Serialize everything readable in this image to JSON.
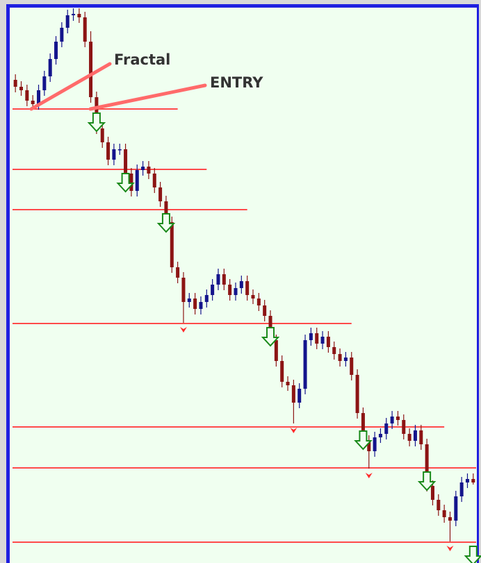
{
  "chart_data": {
    "type": "candlestick",
    "annotations": [
      "Fractal",
      "ENTRY"
    ],
    "up_color": "#14148c",
    "down_color": "#8c1414",
    "level_color": "#ff4a4a",
    "fractal_color": "#ff2a2a",
    "signal_color": "#1a8a1a",
    "ylim": [
      0,
      793
    ],
    "open": [
      690,
      680,
      675,
      660,
      655,
      675,
      695,
      720,
      745,
      765,
      783,
      785,
      780,
      745,
      665,
      620,
      600,
      575,
      590,
      590,
      555,
      530,
      560,
      565,
      555,
      535,
      515,
      485,
      420,
      405,
      370,
      375,
      360,
      370,
      380,
      395,
      410,
      395,
      380,
      390,
      400,
      380,
      375,
      365,
      350,
      315,
      285,
      255,
      250,
      225,
      245,
      315,
      325,
      310,
      320,
      305,
      295,
      285,
      290,
      265,
      210,
      170,
      155,
      175,
      180,
      195,
      205,
      200,
      180,
      170,
      185,
      165,
      105,
      85,
      70,
      60,
      55,
      90,
      110,
      115
    ],
    "high": [
      698,
      688,
      683,
      668,
      683,
      703,
      728,
      753,
      773,
      791,
      793,
      793,
      788,
      760,
      673,
      628,
      608,
      598,
      598,
      598,
      563,
      568,
      573,
      573,
      563,
      543,
      523,
      493,
      428,
      413,
      383,
      383,
      378,
      388,
      403,
      418,
      418,
      403,
      398,
      408,
      408,
      388,
      383,
      373,
      358,
      323,
      293,
      263,
      258,
      253,
      323,
      333,
      333,
      328,
      328,
      313,
      303,
      298,
      298,
      273,
      218,
      178,
      183,
      188,
      203,
      213,
      213,
      208,
      188,
      193,
      193,
      173,
      113,
      93,
      78,
      68,
      98,
      118,
      123,
      123
    ],
    "low": [
      672,
      667,
      652,
      647,
      647,
      667,
      687,
      712,
      737,
      757,
      775,
      772,
      737,
      657,
      612,
      592,
      567,
      567,
      582,
      547,
      522,
      522,
      552,
      547,
      527,
      507,
      477,
      412,
      397,
      340,
      362,
      352,
      352,
      362,
      372,
      387,
      387,
      372,
      372,
      382,
      372,
      367,
      357,
      342,
      307,
      277,
      247,
      242,
      195,
      217,
      237,
      307,
      302,
      302,
      297,
      287,
      277,
      277,
      257,
      202,
      162,
      130,
      147,
      167,
      172,
      187,
      192,
      172,
      162,
      162,
      157,
      97,
      77,
      62,
      52,
      25,
      47,
      82,
      102,
      107
    ],
    "close": [
      680,
      675,
      660,
      655,
      675,
      695,
      720,
      745,
      765,
      783,
      785,
      780,
      745,
      665,
      620,
      600,
      575,
      590,
      590,
      555,
      530,
      560,
      565,
      555,
      535,
      515,
      485,
      420,
      405,
      370,
      375,
      360,
      370,
      380,
      395,
      410,
      395,
      380,
      390,
      400,
      380,
      375,
      365,
      350,
      315,
      285,
      255,
      250,
      225,
      245,
      315,
      325,
      310,
      320,
      305,
      295,
      285,
      290,
      265,
      210,
      170,
      155,
      175,
      180,
      195,
      205,
      200,
      180,
      170,
      185,
      165,
      105,
      85,
      70,
      60,
      55,
      90,
      110,
      115,
      110
    ],
    "levels": [
      648,
      561,
      503,
      339,
      190,
      131,
      24
    ]
  }
}
